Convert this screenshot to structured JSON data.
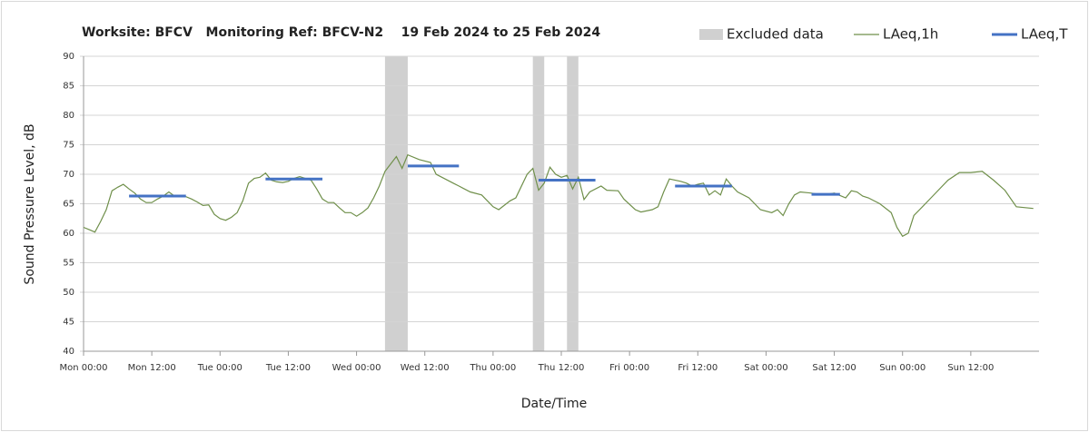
{
  "chart_data": {
    "type": "line",
    "title": "Worksite: BFCV   Monitoring Ref: BFCV-N2    19 Feb 2024 to 25 Feb 2024",
    "xlabel": "Date/Time",
    "ylabel": "Sound Pressure Level, dB",
    "xlim": [
      0,
      168
    ],
    "xticks": [
      {
        "value": 0,
        "label": "Mon 00:00"
      },
      {
        "value": 12,
        "label": "Mon 12:00"
      },
      {
        "value": 24,
        "label": "Tue 00:00"
      },
      {
        "value": 36,
        "label": "Tue 12:00"
      },
      {
        "value": 48,
        "label": "Wed 00:00"
      },
      {
        "value": 60,
        "label": "Wed 12:00"
      },
      {
        "value": 72,
        "label": "Thu 00:00"
      },
      {
        "value": 84,
        "label": "Thu 12:00"
      },
      {
        "value": 96,
        "label": "Fri 00:00"
      },
      {
        "value": 108,
        "label": "Fri 12:00"
      },
      {
        "value": 120,
        "label": "Sat 00:00"
      },
      {
        "value": 132,
        "label": "Sat 12:00"
      },
      {
        "value": 144,
        "label": "Sun 00:00"
      },
      {
        "value": 156,
        "label": "Sun 12:00"
      }
    ],
    "ylim": [
      40,
      90
    ],
    "yticks": [
      40,
      45,
      50,
      55,
      60,
      65,
      70,
      75,
      80,
      85,
      90
    ],
    "grid": true,
    "legend": "top-right",
    "excluded": {
      "name": "Excluded data",
      "color": "#d0d0d0",
      "ranges": [
        [
          53,
          57
        ],
        [
          79,
          81
        ],
        [
          85,
          87
        ]
      ]
    },
    "series": [
      {
        "name": "LAeq,1h",
        "color": "#6f8f4a",
        "x": [
          0,
          1,
          2,
          3,
          4,
          5,
          6,
          7,
          8,
          9,
          10,
          11,
          12,
          13,
          14,
          15,
          16,
          17,
          18,
          19,
          20,
          21,
          22,
          23,
          24,
          25,
          26,
          27,
          28,
          29,
          30,
          31,
          32,
          33,
          34,
          35,
          36,
          37,
          38,
          39,
          40,
          41,
          42,
          43,
          44,
          45,
          46,
          47,
          48,
          49,
          50,
          51,
          52,
          53,
          55,
          56,
          57,
          59,
          61,
          62,
          63,
          65,
          66,
          68,
          70,
          71,
          72,
          73,
          75,
          76,
          78,
          79,
          80,
          81,
          82,
          83,
          84,
          85,
          86,
          87,
          88,
          89,
          91,
          92,
          94,
          95,
          97,
          98,
          100,
          101,
          102,
          103,
          105,
          106,
          107,
          108,
          109,
          110,
          111,
          112,
          113,
          114,
          115,
          117,
          119,
          121,
          122,
          123,
          124,
          125,
          126,
          128,
          130,
          132,
          134,
          135,
          136,
          137,
          138,
          140,
          142,
          143,
          144,
          145,
          146,
          147,
          148,
          150,
          152,
          154,
          156,
          158,
          160,
          162,
          164,
          167
        ],
        "values": [
          61,
          60.6,
          60.2,
          62,
          64,
          67.2,
          67.8,
          68.3,
          67.5,
          66.8,
          65.8,
          65.2,
          65.2,
          65.8,
          66.3,
          67,
          66.3,
          66.3,
          66.2,
          65.8,
          65.3,
          64.7,
          64.8,
          63.2,
          62.5,
          62.2,
          62.7,
          63.5,
          65.5,
          68.5,
          69.3,
          69.5,
          70.2,
          69,
          68.7,
          68.6,
          68.8,
          69.3,
          69.6,
          69.3,
          69,
          67.5,
          65.8,
          65.2,
          65.2,
          64.3,
          63.5,
          63.5,
          62.9,
          63.5,
          64.3,
          66,
          68,
          70.5,
          73,
          71,
          73.3,
          72.5,
          72,
          70,
          69.5,
          68.5,
          68,
          67,
          66.5,
          65.5,
          64.5,
          64,
          65.5,
          66,
          70,
          71,
          67.3,
          68.5,
          71.2,
          70,
          69.5,
          69.8,
          67.5,
          69.5,
          65.7,
          67,
          68,
          67.3,
          67.2,
          65.8,
          64,
          63.6,
          64,
          64.5,
          67,
          69.2,
          68.8,
          68.5,
          68,
          68.3,
          68.5,
          66.5,
          67.2,
          66.5,
          69.2,
          68,
          67,
          66,
          64,
          63.5,
          64,
          63,
          65,
          66.5,
          67,
          66.8,
          66.5,
          66.8,
          66,
          67.2,
          67,
          66.3,
          66,
          65,
          63.5,
          61,
          59.5,
          60,
          63,
          64,
          65,
          67,
          69,
          70.3,
          70.3,
          70.5,
          69,
          67.3,
          64.5,
          64.2
        ]
      },
      {
        "name": "LAeq,T",
        "color": "#4472c4",
        "segments": [
          {
            "x": [
              8,
              18
            ],
            "value": 66.3
          },
          {
            "x": [
              32,
              42
            ],
            "value": 69.2
          },
          {
            "x": [
              57,
              66
            ],
            "value": 71.4
          },
          {
            "x": [
              80,
              90
            ],
            "value": 69
          },
          {
            "x": [
              104,
              114
            ],
            "value": 68
          },
          {
            "x": [
              128,
              133
            ],
            "value": 66.6
          }
        ]
      }
    ]
  }
}
